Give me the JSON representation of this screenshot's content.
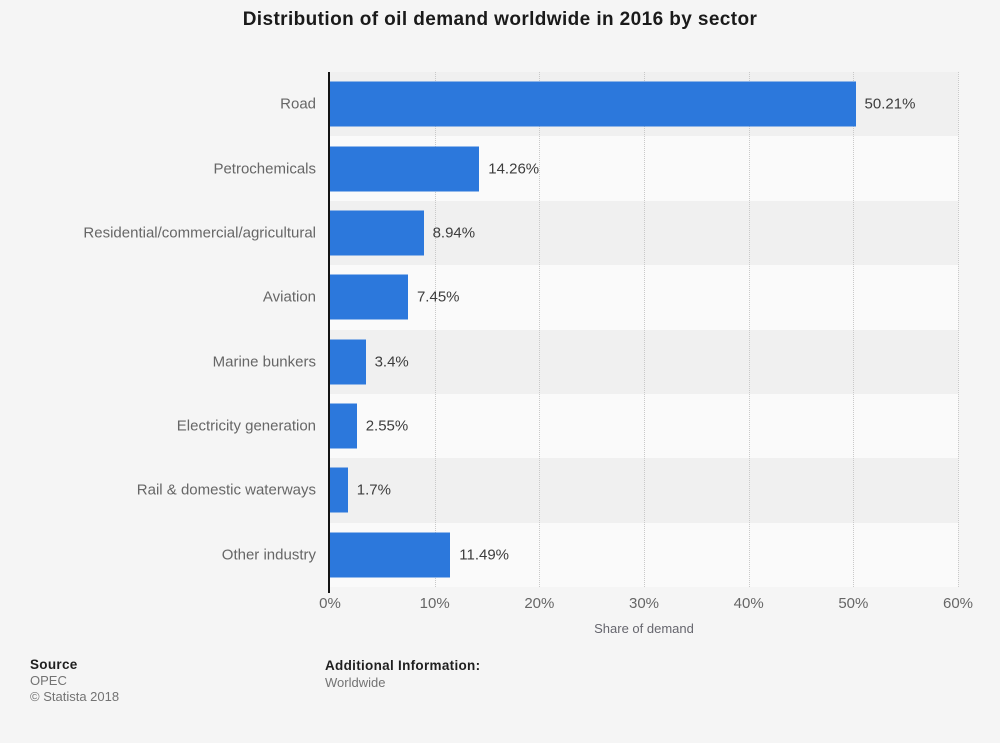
{
  "title": "Distribution of oil demand worldwide in 2016 by sector",
  "chart_data": {
    "type": "bar",
    "orientation": "horizontal",
    "title": "Distribution of oil demand worldwide in 2016 by sector",
    "categories": [
      "Road",
      "Petrochemicals",
      "Residential/commercial/agricultural",
      "Aviation",
      "Marine bunkers",
      "Electricity generation",
      "Rail & domestic waterways",
      "Other industry"
    ],
    "values": [
      50.21,
      14.26,
      8.94,
      7.45,
      3.4,
      2.55,
      1.7,
      11.49
    ],
    "value_labels": [
      "50.21%",
      "14.26%",
      "8.94%",
      "7.45%",
      "3.4%",
      "2.55%",
      "1.7%",
      "11.49%"
    ],
    "xlabel": "Share of demand",
    "ylabel": "",
    "xlim": [
      0,
      60
    ],
    "xticks": [
      0,
      10,
      20,
      30,
      40,
      50,
      60
    ],
    "xtick_labels": [
      "0%",
      "10%",
      "20%",
      "30%",
      "40%",
      "50%",
      "60%"
    ],
    "grid": "vertical-dotted",
    "legend": "none",
    "bar_color": "#2c78dc",
    "band_colors": [
      "#f0f0f0",
      "#fafafa"
    ]
  },
  "colors": {
    "page_bg": "#f5f5f5",
    "axis": "#141414",
    "gridline": "#c9c9c9",
    "title_text": "#1a1a1a",
    "category_text": "#666666",
    "value_text": "#3d3d3d"
  },
  "footer": {
    "source_label": "Source",
    "source_value": "OPEC",
    "copyright": "© Statista 2018",
    "additional_label": "Additional Information:",
    "additional_value": "Worldwide"
  }
}
